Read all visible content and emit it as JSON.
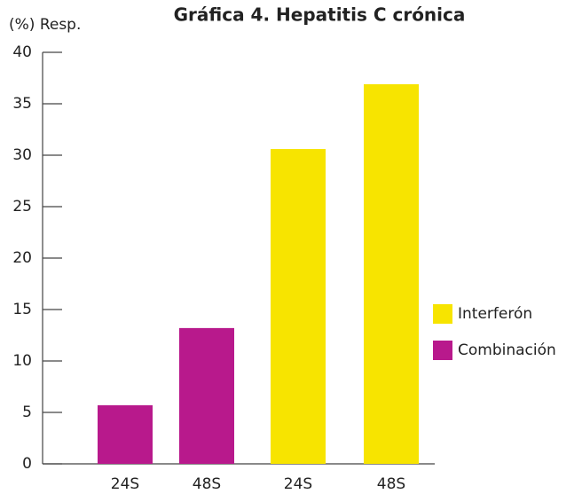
{
  "chart_data": {
    "type": "bar",
    "title": "Gráfica 4. Hepatitis C crónica",
    "y_label": "(%) Resp.",
    "categories": [
      "24S",
      "48S",
      "24S",
      "48S"
    ],
    "series": [
      {
        "name": "Interferón",
        "color": "#f7e400",
        "values": [
          null,
          null,
          30.6,
          36.9
        ]
      },
      {
        "name": "Combinación",
        "color": "#b8198c",
        "values": [
          5.7,
          13.2,
          null,
          null
        ]
      }
    ],
    "ylim": [
      0,
      40
    ],
    "yticks": [
      0,
      5,
      10,
      15,
      20,
      25,
      30,
      35,
      40
    ],
    "legend": "right"
  }
}
